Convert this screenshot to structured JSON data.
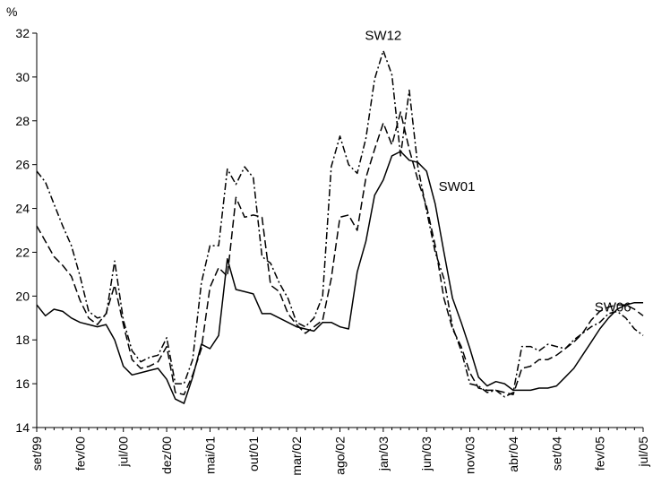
{
  "chart_data": {
    "type": "line",
    "title": "",
    "xlabel": "",
    "ylabel": "%",
    "ylim": [
      14,
      32
    ],
    "y_ticks": [
      14,
      16,
      18,
      20,
      22,
      24,
      26,
      28,
      30,
      32
    ],
    "x_range": [
      0,
      70
    ],
    "x_tick_labels": [
      {
        "x": 0,
        "label": "set/99"
      },
      {
        "x": 5,
        "label": "fev/00"
      },
      {
        "x": 10,
        "label": "jul/00"
      },
      {
        "x": 15,
        "label": "dez/00"
      },
      {
        "x": 20,
        "label": "mai/01"
      },
      {
        "x": 25,
        "label": "out/01"
      },
      {
        "x": 30,
        "label": "mar/02"
      },
      {
        "x": 35,
        "label": "ago/02"
      },
      {
        "x": 40,
        "label": "jan/03"
      },
      {
        "x": 45,
        "label": "jun/03"
      },
      {
        "x": 50,
        "label": "nov/03"
      },
      {
        "x": 55,
        "label": "abr/04"
      },
      {
        "x": 60,
        "label": "set/04"
      },
      {
        "x": 65,
        "label": "fev/05"
      },
      {
        "x": 70,
        "label": "jul/05"
      }
    ],
    "grid": false,
    "legend": "none",
    "series_labels": [
      {
        "text": "SW12",
        "x": 40,
        "y": 31.7
      },
      {
        "text": "SW01",
        "x": 48.5,
        "y": 24.8
      },
      {
        "text": "SW06",
        "x": 66.5,
        "y": 19.3
      }
    ],
    "series": [
      {
        "name": "SW01",
        "style": "solid",
        "values": [
          19.6,
          19.1,
          19.4,
          19.3,
          19.0,
          18.8,
          18.7,
          18.6,
          18.7,
          18.0,
          16.8,
          16.4,
          16.5,
          16.6,
          16.7,
          16.2,
          15.3,
          15.1,
          16.3,
          17.8,
          17.6,
          18.2,
          21.7,
          20.3,
          20.2,
          20.1,
          19.2,
          19.2,
          19.0,
          18.8,
          18.6,
          18.5,
          18.4,
          18.8,
          18.8,
          18.6,
          18.5,
          21.1,
          22.5,
          24.6,
          25.3,
          26.4,
          26.6,
          26.2,
          26.1,
          25.7,
          24.2,
          22.0,
          19.9,
          18.8,
          17.6,
          16.3,
          15.9,
          16.1,
          16.0,
          15.7,
          15.7,
          15.7,
          15.8,
          15.8,
          15.9,
          16.3,
          16.7,
          17.3,
          17.9,
          18.5,
          19.0,
          19.4,
          19.6,
          19.7,
          19.7
        ]
      },
      {
        "name": "SW06",
        "style": "dashed",
        "values": [
          23.2,
          22.5,
          21.8,
          21.4,
          20.9,
          19.8,
          19.0,
          18.7,
          19.2,
          20.5,
          18.7,
          17.1,
          16.7,
          16.8,
          17.0,
          17.7,
          15.6,
          15.5,
          16.4,
          17.6,
          20.4,
          21.3,
          20.9,
          24.5,
          23.6,
          23.7,
          23.6,
          20.5,
          20.2,
          19.2,
          18.7,
          18.3,
          18.6,
          18.9,
          20.8,
          23.6,
          23.7,
          23.0,
          25.4,
          26.7,
          27.9,
          26.9,
          28.4,
          26.7,
          25.3,
          24.1,
          22.3,
          19.9,
          18.5,
          17.7,
          16.5,
          15.8,
          15.7,
          15.7,
          15.6,
          15.5,
          16.7,
          16.8,
          17.1,
          17.1,
          17.3,
          17.6,
          17.9,
          18.3,
          18.9,
          19.3,
          19.5,
          19.6,
          19.6,
          19.4,
          19.1
        ]
      },
      {
        "name": "SW12",
        "style": "dash-dot",
        "values": [
          25.7,
          25.2,
          24.2,
          23.2,
          22.3,
          20.9,
          19.3,
          19.0,
          19.1,
          21.6,
          18.9,
          17.5,
          17.0,
          17.2,
          17.3,
          18.1,
          16.0,
          16.0,
          17.1,
          20.6,
          22.3,
          22.3,
          25.8,
          25.1,
          25.9,
          25.4,
          21.8,
          21.5,
          20.6,
          19.9,
          18.8,
          18.6,
          19.0,
          20.0,
          25.9,
          27.3,
          26.0,
          25.6,
          27.2,
          29.9,
          31.2,
          30.1,
          26.4,
          29.4,
          25.9,
          23.9,
          22.0,
          20.8,
          18.6,
          17.5,
          16.0,
          15.9,
          15.6,
          15.7,
          15.4,
          15.6,
          17.7,
          17.7,
          17.5,
          17.8,
          17.7,
          17.6,
          18.0,
          18.3,
          18.6,
          18.8,
          19.2,
          19.3,
          19.0,
          18.5,
          18.2
        ]
      }
    ]
  }
}
